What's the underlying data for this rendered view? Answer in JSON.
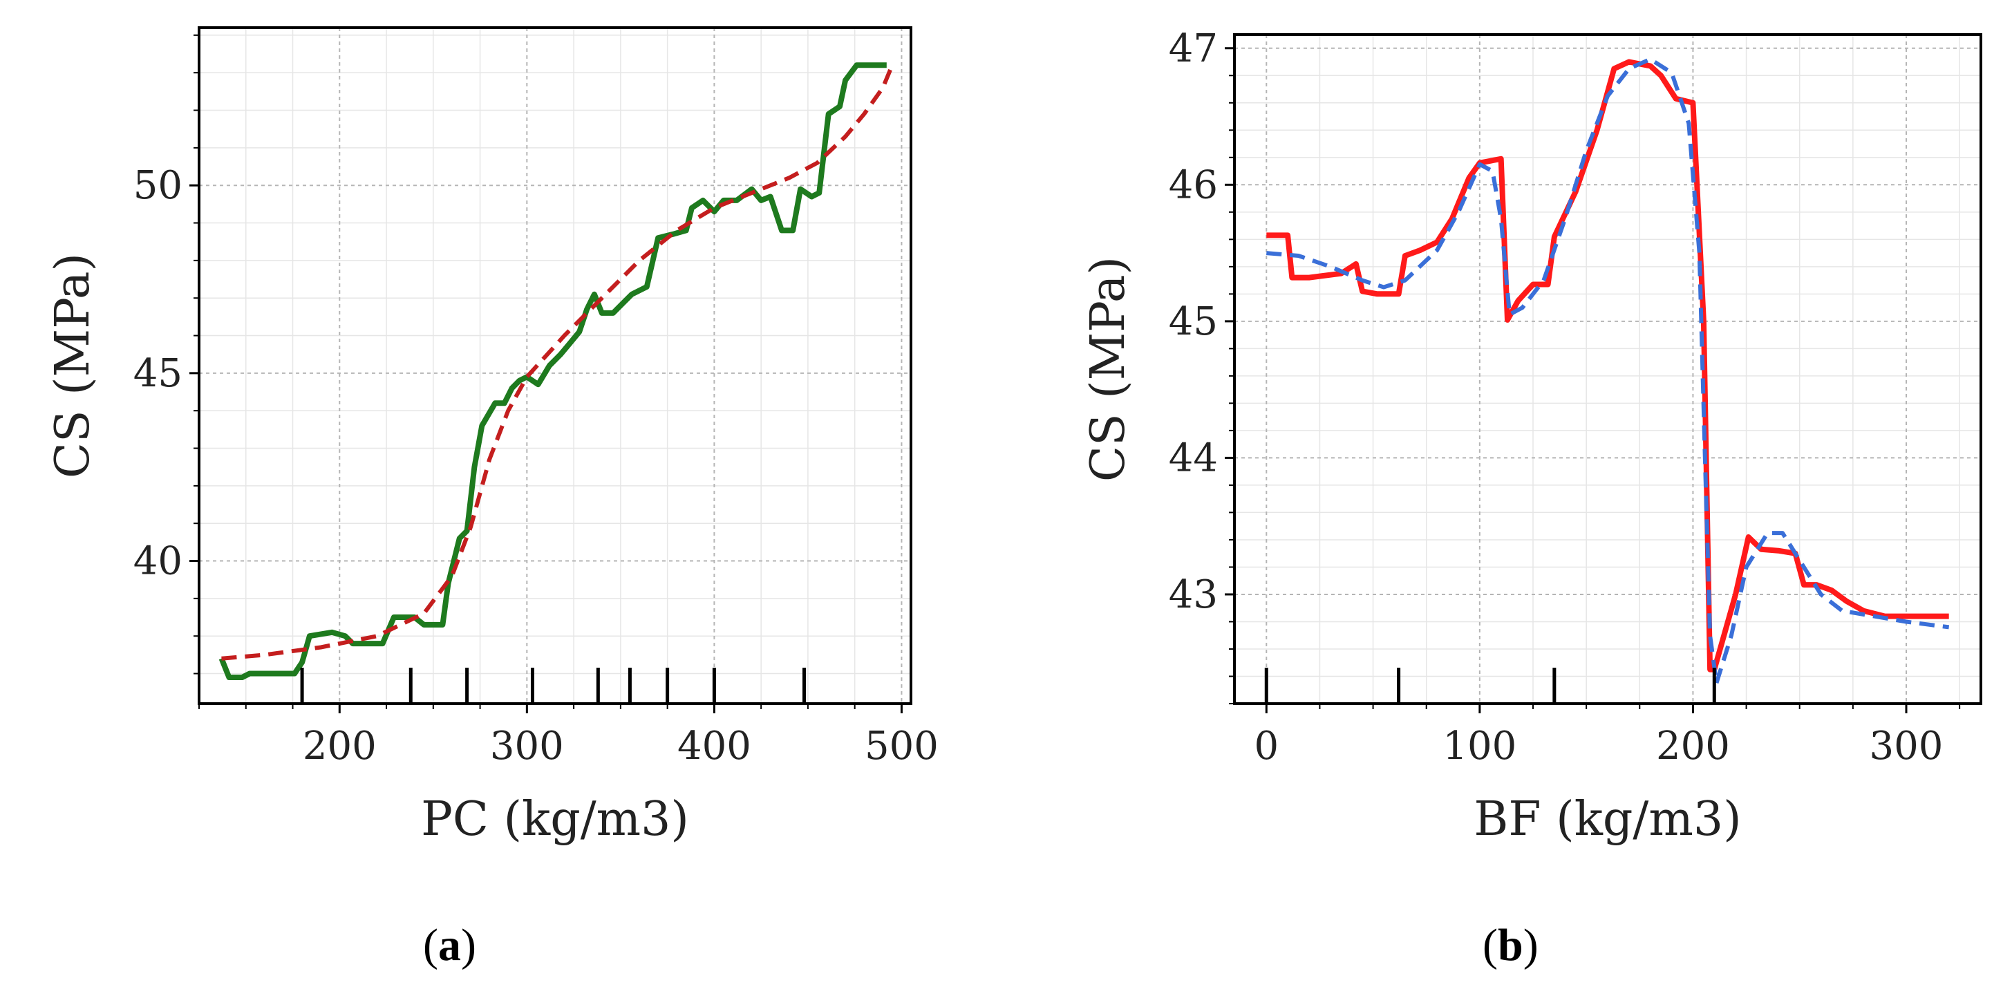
{
  "chart_data": [
    {
      "type": "line",
      "panel_label": "a",
      "xlabel": "PC (kg/m3)",
      "ylabel": "CS (MPa)",
      "xlim": [
        125,
        505
      ],
      "ylim": [
        36.2,
        54.2
      ],
      "xticks": [
        200,
        300,
        400,
        500
      ],
      "yticks": [
        40,
        45,
        50
      ],
      "grid": true,
      "rug": [
        180,
        238,
        268,
        303,
        338,
        355,
        375,
        400,
        448
      ],
      "series": [
        {
          "color": "#1e7a1e",
          "style": "solid",
          "points": [
            [
              137,
              37.4
            ],
            [
              141,
              36.9
            ],
            [
              148,
              36.9
            ],
            [
              152,
              37.0
            ],
            [
              176,
              37.0
            ],
            [
              180,
              37.3
            ],
            [
              184,
              38.0
            ],
            [
              196,
              38.1
            ],
            [
              203,
              38.0
            ],
            [
              207,
              37.8
            ],
            [
              223,
              37.8
            ],
            [
              229,
              38.5
            ],
            [
              240,
              38.5
            ],
            [
              245,
              38.3
            ],
            [
              255,
              38.3
            ],
            [
              258,
              39.4
            ],
            [
              264,
              40.6
            ],
            [
              268,
              40.8
            ],
            [
              272,
              42.5
            ],
            [
              276,
              43.6
            ],
            [
              283,
              44.2
            ],
            [
              288,
              44.2
            ],
            [
              292,
              44.6
            ],
            [
              296,
              44.8
            ],
            [
              300,
              44.9
            ],
            [
              306,
              44.7
            ],
            [
              312,
              45.2
            ],
            [
              318,
              45.5
            ],
            [
              323,
              45.8
            ],
            [
              328,
              46.1
            ],
            [
              332,
              46.7
            ],
            [
              336,
              47.1
            ],
            [
              340,
              46.6
            ],
            [
              346,
              46.6
            ],
            [
              352,
              46.9
            ],
            [
              356,
              47.1
            ],
            [
              364,
              47.3
            ],
            [
              370,
              48.6
            ],
            [
              378,
              48.7
            ],
            [
              385,
              48.8
            ],
            [
              388,
              49.4
            ],
            [
              394,
              49.6
            ],
            [
              400,
              49.3
            ],
            [
              405,
              49.6
            ],
            [
              412,
              49.6
            ],
            [
              420,
              49.9
            ],
            [
              425,
              49.6
            ],
            [
              430,
              49.7
            ],
            [
              436,
              48.8
            ],
            [
              442,
              48.8
            ],
            [
              446,
              49.9
            ],
            [
              452,
              49.7
            ],
            [
              456,
              49.8
            ],
            [
              461,
              51.9
            ],
            [
              467,
              52.1
            ],
            [
              470,
              52.8
            ],
            [
              476,
              53.2
            ],
            [
              492,
              53.2
            ]
          ]
        },
        {
          "color": "#c41e1e",
          "style": "dashed",
          "points": [
            [
              137,
              37.4
            ],
            [
              160,
              37.5
            ],
            [
              190,
              37.7
            ],
            [
              220,
              38.0
            ],
            [
              245,
              38.6
            ],
            [
              260,
              39.6
            ],
            [
              270,
              40.9
            ],
            [
              280,
              42.7
            ],
            [
              290,
              44.0
            ],
            [
              300,
              44.9
            ],
            [
              320,
              46.0
            ],
            [
              340,
              47.0
            ],
            [
              360,
              48.0
            ],
            [
              380,
              48.8
            ],
            [
              400,
              49.4
            ],
            [
              420,
              49.8
            ],
            [
              440,
              50.2
            ],
            [
              455,
              50.6
            ],
            [
              470,
              51.3
            ],
            [
              480,
              51.9
            ],
            [
              490,
              52.6
            ],
            [
              495,
              53.2
            ]
          ]
        }
      ]
    },
    {
      "type": "line",
      "panel_label": "b",
      "xlabel": "BF (kg/m3)",
      "ylabel": "CS (MPa)",
      "xlim": [
        -15,
        335
      ],
      "ylim": [
        42.2,
        47.1
      ],
      "xticks": [
        0,
        100,
        200,
        300
      ],
      "yticks": [
        43,
        44,
        45,
        46,
        47
      ],
      "grid": true,
      "rug": [
        0,
        62,
        135,
        210
      ],
      "series": [
        {
          "color": "#ff1a1a",
          "style": "solid",
          "points": [
            [
              0,
              45.63
            ],
            [
              10,
              45.63
            ],
            [
              12,
              45.32
            ],
            [
              20,
              45.32
            ],
            [
              35,
              45.35
            ],
            [
              42,
              45.42
            ],
            [
              45,
              45.22
            ],
            [
              52,
              45.2
            ],
            [
              62,
              45.2
            ],
            [
              65,
              45.48
            ],
            [
              72,
              45.52
            ],
            [
              80,
              45.58
            ],
            [
              87,
              45.75
            ],
            [
              95,
              46.05
            ],
            [
              100,
              46.16
            ],
            [
              110,
              46.19
            ],
            [
              113,
              45.01
            ],
            [
              118,
              45.15
            ],
            [
              125,
              45.27
            ],
            [
              132,
              45.27
            ],
            [
              135,
              45.62
            ],
            [
              145,
              45.95
            ],
            [
              155,
              46.4
            ],
            [
              163,
              46.85
            ],
            [
              170,
              46.9
            ],
            [
              180,
              46.87
            ],
            [
              185,
              46.8
            ],
            [
              192,
              46.63
            ],
            [
              200,
              46.6
            ],
            [
              205,
              45.0
            ],
            [
              208,
              42.45
            ],
            [
              210,
              42.45
            ],
            [
              220,
              43.0
            ],
            [
              226,
              43.42
            ],
            [
              232,
              43.33
            ],
            [
              240,
              43.32
            ],
            [
              248,
              43.3
            ],
            [
              252,
              43.07
            ],
            [
              258,
              43.07
            ],
            [
              265,
              43.03
            ],
            [
              272,
              42.95
            ],
            [
              280,
              42.88
            ],
            [
              290,
              42.84
            ],
            [
              300,
              42.84
            ],
            [
              320,
              42.84
            ]
          ]
        },
        {
          "color": "#3a6fd8",
          "style": "dashed",
          "points": [
            [
              0,
              45.5
            ],
            [
              15,
              45.48
            ],
            [
              30,
              45.4
            ],
            [
              45,
              45.3
            ],
            [
              55,
              45.25
            ],
            [
              65,
              45.3
            ],
            [
              80,
              45.52
            ],
            [
              90,
              45.8
            ],
            [
              100,
              46.15
            ],
            [
              106,
              46.1
            ],
            [
              110,
              45.75
            ],
            [
              114,
              45.05
            ],
            [
              120,
              45.1
            ],
            [
              130,
              45.3
            ],
            [
              140,
              45.75
            ],
            [
              150,
              46.25
            ],
            [
              160,
              46.65
            ],
            [
              170,
              46.85
            ],
            [
              180,
              46.92
            ],
            [
              190,
              46.82
            ],
            [
              198,
              46.45
            ],
            [
              203,
              45.5
            ],
            [
              206,
              43.8
            ],
            [
              208,
              42.7
            ],
            [
              211,
              42.35
            ],
            [
              218,
              42.7
            ],
            [
              225,
              43.2
            ],
            [
              235,
              43.45
            ],
            [
              242,
              43.45
            ],
            [
              250,
              43.25
            ],
            [
              260,
              43.0
            ],
            [
              270,
              42.88
            ],
            [
              285,
              42.84
            ],
            [
              300,
              42.8
            ],
            [
              320,
              42.76
            ]
          ]
        }
      ]
    }
  ]
}
